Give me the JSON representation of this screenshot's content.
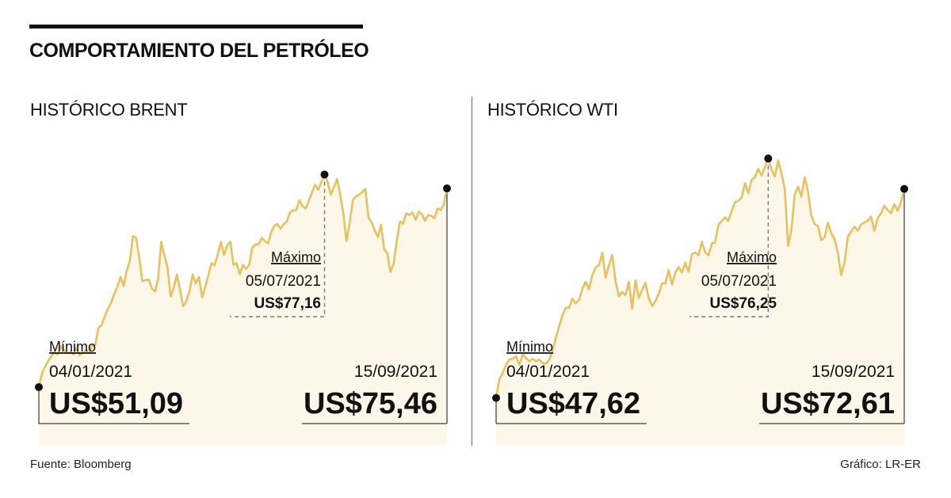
{
  "title": "COMPORTAMIENTO DEL PETRÓLEO",
  "source": "Fuente: Bloomberg",
  "credit": "Gráfico: LR-ER",
  "colors": {
    "line": "#E8C15C",
    "fill": "#FDF7EA",
    "ink": "#111111",
    "dash": "#777777"
  },
  "chart_data": [
    {
      "type": "area",
      "title": "HISTÓRICO BRENT",
      "ylim": [
        44,
        84
      ],
      "min": {
        "label": "Mínimo",
        "date": "04/01/2021",
        "value": 51.09,
        "text": "US$51,09"
      },
      "max": {
        "label": "Máximo",
        "date": "05/07/2021",
        "value": 77.16,
        "text": "US$77,16"
      },
      "last": {
        "date": "15/09/2021",
        "value": 75.46,
        "text": "US$75,46"
      },
      "values": [
        51.09,
        52.8,
        53.6,
        54.3,
        54.9,
        55.4,
        55.1,
        56.1,
        55.6,
        55.3,
        55.4,
        55.1,
        55.9,
        55.0,
        55.3,
        55.6,
        55.4,
        56.2,
        56.3,
        58.4,
        58.7,
        59.8,
        60.7,
        61.4,
        62.5,
        63.4,
        64.6,
        63.5,
        65.4,
        66.6,
        69.6,
        69.4,
        66.9,
        64.1,
        64.2,
        64.3,
        63.2,
        62.8,
        64.4,
        68.9,
        67.2,
        65.8,
        62.2,
        63.3,
        64.9,
        63.0,
        61.0,
        61.6,
        62.9,
        64.9,
        63.8,
        64.6,
        62.1,
        63.4,
        64.8,
        66.3,
        66.0,
        67.4,
        68.9,
        67.3,
        68.5,
        68.9,
        66.1,
        66.3,
        64.9,
        66.1,
        65.6,
        66.1,
        68.2,
        68.6,
        68.6,
        69.4,
        69.0,
        68.7,
        70.1,
        70.9,
        71.1,
        70.5,
        71.1,
        71.4,
        72.5,
        72.8,
        72.8,
        74.0,
        73.3,
        73.0,
        73.9,
        75.0,
        75.9,
        75.3,
        76.2,
        77.16,
        76.2,
        74.7,
        75.6,
        76.6,
        74.7,
        72.4,
        69.0,
        71.2,
        74.0,
        74.5,
        74.7,
        75.0,
        75.4,
        71.9,
        71.3,
        70.3,
        69.5,
        71.0,
        68.0,
        67.5,
        65.2,
        66.2,
        69.0,
        71.4,
        71.1,
        72.4,
        72.2,
        72.5,
        71.6,
        72.6,
        72.3,
        71.5,
        72.2,
        72.1,
        71.8,
        73.0,
        72.8,
        73.5,
        75.46
      ]
    },
    {
      "type": "area",
      "title": "HISTÓRICO WTI",
      "ylim": [
        42,
        81
      ],
      "min": {
        "label": "Mínimo",
        "date": "04/01/2021",
        "value": 47.62,
        "text": "US$47,62"
      },
      "max": {
        "label": "Máximo",
        "date": "05/07/2021",
        "value": 76.25,
        "text": "US$76,25"
      },
      "last": {
        "date": "15/09/2021",
        "value": 72.61,
        "text": "US$72,61"
      },
      "values": [
        47.62,
        49.9,
        50.6,
        51.6,
        52.2,
        52.3,
        52.6,
        51.6,
        52.8,
        52.4,
        52.0,
        52.3,
        52.0,
        52.2,
        51.8,
        51.7,
        52.2,
        53.2,
        54.8,
        56.2,
        57.5,
        58.4,
        58.4,
        59.5,
        58.9,
        59.3,
        60.7,
        61.5,
        60.6,
        62.3,
        63.2,
        63.5,
        65.0,
        62.0,
        63.5,
        64.7,
        61.6,
        59.8,
        60.3,
        59.9,
        61.5,
        58.3,
        61.7,
        59.6,
        60.5,
        61.4,
        59.6,
        58.6,
        59.2,
        60.1,
        61.3,
        61.3,
        62.9,
        61.2,
        62.6,
        63.3,
        62.6,
        63.8,
        62.7,
        64.8,
        65.0,
        64.7,
        66.3,
        65.0,
        64.7,
        66.1,
        66.2,
        68.3,
        68.8,
        69.2,
        68.8,
        70.0,
        71.0,
        71.2,
        71.6,
        73.3,
        72.1,
        73.7,
        74.0,
        75.0,
        74.2,
        75.2,
        76.25,
        75.0,
        74.1,
        76.0,
        74.5,
        72.6,
        65.8,
        67.7,
        71.9,
        72.9,
        71.7,
        74.0,
        72.3,
        69.4,
        68.4,
        68.2,
        66.5,
        66.8,
        68.6,
        67.3,
        66.6,
        65.0,
        62.3,
        63.8,
        66.9,
        67.5,
        68.1,
        67.6,
        68.4,
        68.6,
        68.8,
        69.3,
        67.6,
        69.1,
        69.7,
        70.6,
        70.1,
        69.7,
        70.8,
        70.0,
        71.0,
        72.61
      ]
    }
  ]
}
